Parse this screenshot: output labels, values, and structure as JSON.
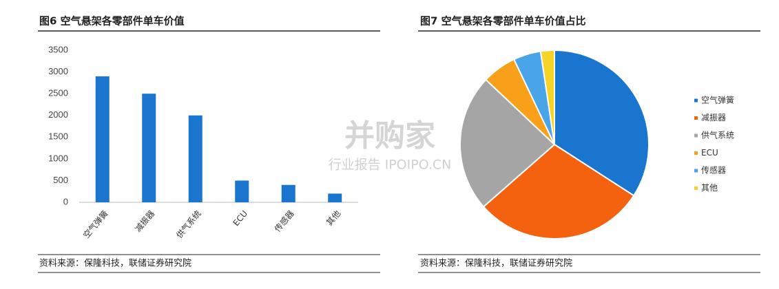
{
  "chart_data": [
    {
      "type": "bar",
      "title": "图6  空气悬架各零部件单车价值",
      "categories": [
        "空气弹簧",
        "减振器",
        "供气系统",
        "ECU",
        "传感器",
        "其他"
      ],
      "values": [
        2900,
        2500,
        2000,
        500,
        400,
        200
      ],
      "color": "#1a75cf",
      "ylim": [
        0,
        3500
      ],
      "yticks": [
        0,
        500,
        1000,
        1500,
        2000,
        2500,
        3000,
        3500
      ],
      "grid": false,
      "source": "资料来源：保隆科技，联储证券研究院"
    },
    {
      "type": "pie",
      "title": "图7  空气悬架各零部件单车价值占比",
      "categories": [
        "空气弹簧",
        "减振器",
        "供气系统",
        "ECU",
        "传感器",
        "其他"
      ],
      "values": [
        2900,
        2500,
        2000,
        500,
        400,
        200
      ],
      "colors": [
        "#1a75cf",
        "#f5620f",
        "#a5a5a5",
        "#f9a01b",
        "#4aa5e8",
        "#f5d327"
      ],
      "legend": "right",
      "source": "资料来源：保隆科技，联储证券研究院"
    }
  ],
  "watermark": {
    "title": "并购家",
    "subtitle": "行业报告 IPOIPO.CN"
  }
}
